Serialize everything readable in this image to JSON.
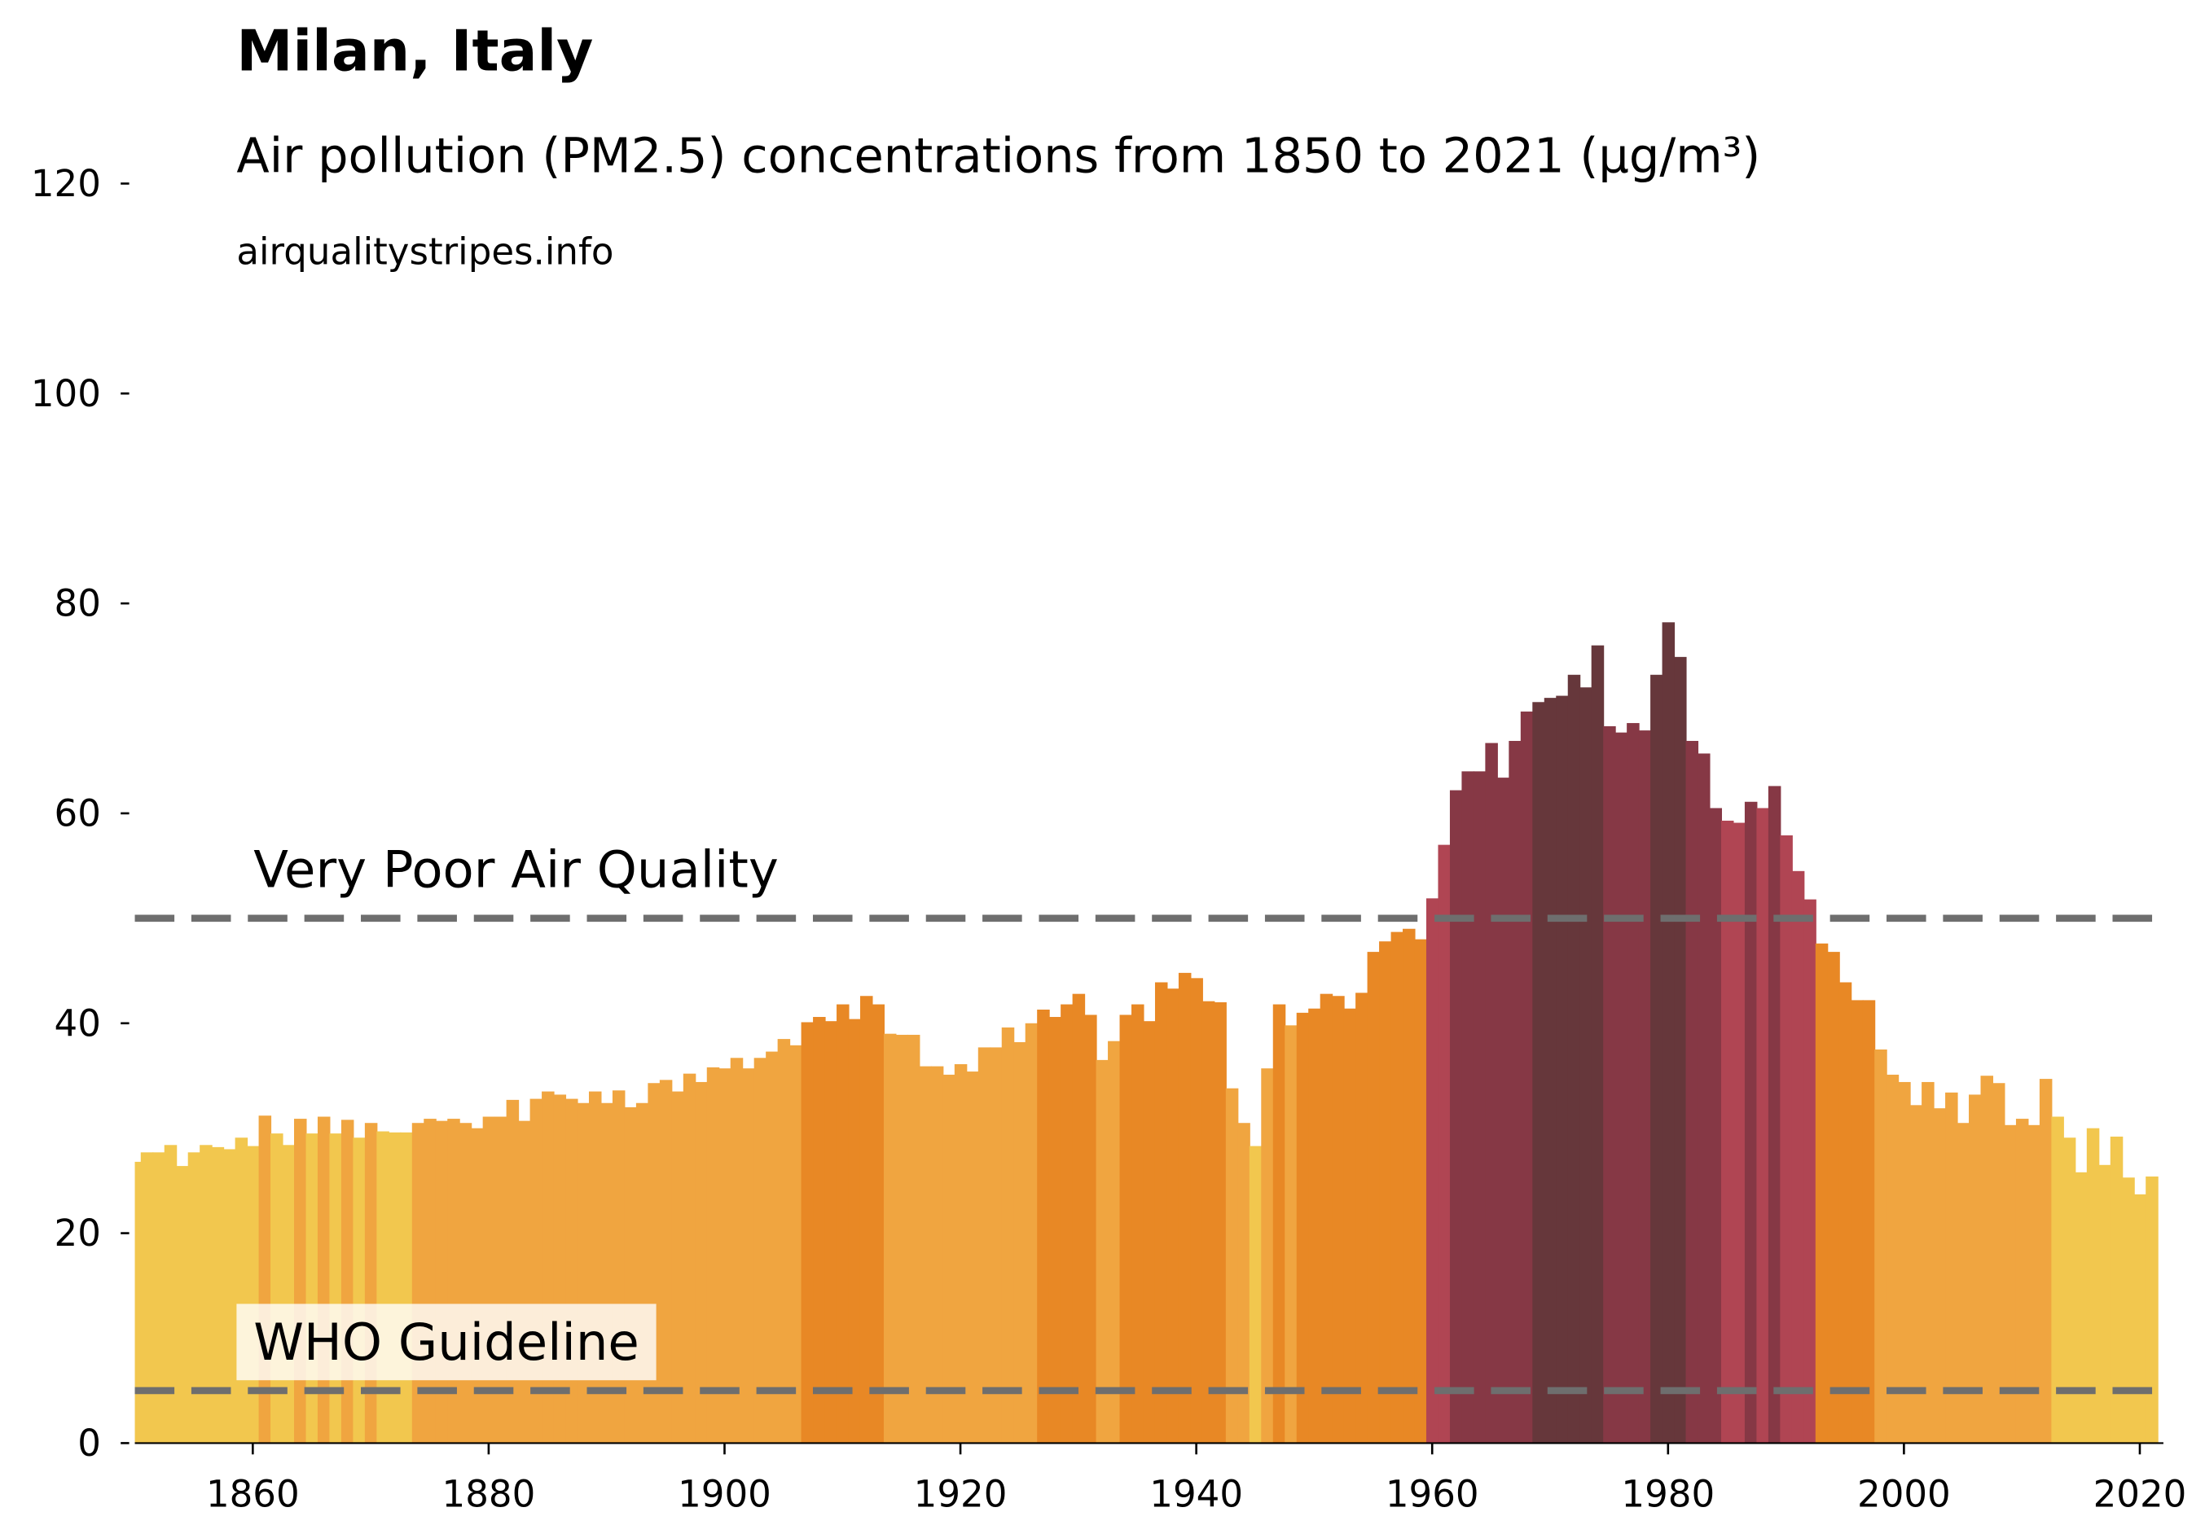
{
  "chart_data": {
    "type": "bar",
    "title": "Milan, Italy",
    "subtitle": "Air pollution (PM2.5) concentrations from 1850 to 2021 (µg/m³)",
    "source": "airqualitystripes.info",
    "x": [
      1850,
      1851,
      1852,
      1853,
      1854,
      1855,
      1856,
      1857,
      1858,
      1859,
      1860,
      1861,
      1862,
      1863,
      1864,
      1865,
      1866,
      1867,
      1868,
      1869,
      1870,
      1871,
      1872,
      1873,
      1874,
      1875,
      1876,
      1877,
      1878,
      1879,
      1880,
      1881,
      1882,
      1883,
      1884,
      1885,
      1886,
      1887,
      1888,
      1889,
      1890,
      1891,
      1892,
      1893,
      1894,
      1895,
      1896,
      1897,
      1898,
      1899,
      1900,
      1901,
      1902,
      1903,
      1904,
      1905,
      1906,
      1907,
      1908,
      1909,
      1910,
      1911,
      1912,
      1913,
      1914,
      1915,
      1916,
      1917,
      1918,
      1919,
      1920,
      1921,
      1922,
      1923,
      1924,
      1925,
      1926,
      1927,
      1928,
      1929,
      1930,
      1931,
      1932,
      1933,
      1934,
      1935,
      1936,
      1937,
      1938,
      1939,
      1940,
      1941,
      1942,
      1943,
      1944,
      1945,
      1946,
      1947,
      1948,
      1949,
      1950,
      1951,
      1952,
      1953,
      1954,
      1955,
      1956,
      1957,
      1958,
      1959,
      1960,
      1961,
      1962,
      1963,
      1964,
      1965,
      1966,
      1967,
      1968,
      1969,
      1970,
      1971,
      1972,
      1973,
      1974,
      1975,
      1976,
      1977,
      1978,
      1979,
      1980,
      1981,
      1982,
      1983,
      1984,
      1985,
      1986,
      1987,
      1988,
      1989,
      1990,
      1991,
      1992,
      1993,
      1994,
      1995,
      1996,
      1997,
      1998,
      1999,
      2000,
      2001,
      2002,
      2003,
      2004,
      2005,
      2006,
      2007,
      2008,
      2009,
      2010,
      2011,
      2012,
      2013,
      2014,
      2015,
      2016,
      2017,
      2018,
      2019,
      2020,
      2021
    ],
    "values": [
      26.8,
      27.7,
      27.7,
      28.4,
      26.4,
      27.7,
      28.4,
      28.2,
      28.0,
      29.1,
      28.3,
      31.2,
      29.5,
      28.4,
      30.9,
      29.5,
      31.1,
      29.5,
      30.8,
      29.1,
      30.5,
      29.7,
      29.6,
      29.6,
      30.5,
      30.9,
      30.7,
      30.9,
      30.5,
      30.0,
      31.1,
      31.1,
      32.7,
      30.7,
      32.8,
      33.5,
      33.2,
      32.8,
      32.4,
      33.5,
      32.4,
      33.6,
      32.0,
      32.4,
      34.3,
      34.6,
      33.5,
      35.2,
      34.4,
      35.8,
      35.7,
      36.7,
      35.7,
      36.7,
      37.3,
      38.5,
      37.9,
      40.1,
      40.6,
      40.2,
      41.8,
      40.4,
      42.6,
      41.8,
      39.0,
      38.9,
      38.9,
      35.9,
      35.9,
      35.1,
      36.1,
      35.4,
      37.7,
      37.7,
      39.6,
      38.2,
      40.0,
      41.3,
      40.6,
      41.8,
      42.8,
      40.8,
      36.5,
      38.3,
      40.8,
      41.8,
      40.2,
      43.9,
      43.3,
      44.8,
      44.3,
      42.1,
      42.0,
      33.8,
      30.5,
      28.3,
      35.7,
      41.8,
      39.8,
      41.0,
      41.4,
      42.8,
      42.6,
      41.4,
      42.9,
      46.8,
      47.8,
      48.7,
      49.0,
      48.0,
      51.9,
      57.0,
      62.2,
      64.0,
      64.0,
      66.7,
      63.4,
      66.9,
      69.7,
      70.6,
      71.0,
      71.2,
      73.2,
      72.0,
      76.0,
      68.3,
      67.7,
      68.6,
      67.9,
      73.2,
      78.2,
      74.9,
      66.9,
      65.7,
      60.5,
      59.3,
      59.1,
      61.1,
      60.5,
      62.6,
      57.9,
      54.5,
      51.8,
      47.6,
      46.8,
      43.9,
      42.2,
      42.2,
      37.5,
      35.1,
      34.4,
      32.2,
      34.4,
      31.9,
      33.4,
      30.5,
      33.2,
      35.0,
      34.3,
      30.3,
      30.9,
      30.3,
      34.7,
      31.1,
      29.1,
      25.8,
      30.0,
      26.5,
      29.2,
      25.3,
      23.7,
      25.4
    ],
    "colors": [
      "#f2c74e",
      "#f2c74e",
      "#f2c74e",
      "#f2c74e",
      "#f2c74e",
      "#f2c74e",
      "#f2c74e",
      "#f2c74e",
      "#f2c74e",
      "#f2c74e",
      "#f2c74e",
      "#f0a540",
      "#f2c74e",
      "#f2c74e",
      "#f0a540",
      "#f2c74e",
      "#f0a540",
      "#f2c74e",
      "#f0a540",
      "#f2c74e",
      "#f0a540",
      "#f2c74e",
      "#f2c74e",
      "#f2c74e",
      "#f0a540",
      "#f0a540",
      "#f0a540",
      "#f0a540",
      "#f0a540",
      "#f0a540",
      "#f0a540",
      "#f0a540",
      "#f0a540",
      "#f0a540",
      "#f0a540",
      "#f0a540",
      "#f0a540",
      "#f0a540",
      "#f0a540",
      "#f0a540",
      "#f0a540",
      "#f0a540",
      "#f0a540",
      "#f0a540",
      "#f0a540",
      "#f0a540",
      "#f0a540",
      "#f0a540",
      "#f0a540",
      "#f0a540",
      "#f0a540",
      "#f0a540",
      "#f0a540",
      "#f0a540",
      "#f0a540",
      "#f0a540",
      "#f0a540",
      "#e88825",
      "#e88825",
      "#e88825",
      "#e88825",
      "#e88825",
      "#e88825",
      "#e88825",
      "#f0a540",
      "#f0a540",
      "#f0a540",
      "#f0a540",
      "#f0a540",
      "#f0a540",
      "#f0a540",
      "#f0a540",
      "#f0a540",
      "#f0a540",
      "#f0a540",
      "#f0a540",
      "#f0a540",
      "#e88825",
      "#e88825",
      "#e88825",
      "#e88825",
      "#e88825",
      "#f0a540",
      "#f0a540",
      "#e88825",
      "#e88825",
      "#e88825",
      "#e88825",
      "#e88825",
      "#e88825",
      "#e88825",
      "#e88825",
      "#e88825",
      "#f0a540",
      "#f0a540",
      "#f2c74e",
      "#f0a540",
      "#e88825",
      "#f0a540",
      "#e88825",
      "#e88825",
      "#e88825",
      "#e88825",
      "#e88825",
      "#e88825",
      "#e88825",
      "#e88825",
      "#e88825",
      "#e88825",
      "#e88825",
      "#b04553",
      "#b04553",
      "#863845",
      "#863845",
      "#863845",
      "#863845",
      "#863845",
      "#863845",
      "#863845",
      "#66373b",
      "#66373b",
      "#66373b",
      "#66373b",
      "#66373b",
      "#66373b",
      "#863845",
      "#863845",
      "#863845",
      "#863845",
      "#66373b",
      "#66373b",
      "#66373b",
      "#863845",
      "#863845",
      "#863845",
      "#b04553",
      "#b04553",
      "#863845",
      "#b04553",
      "#863845",
      "#b04553",
      "#b04553",
      "#b04553",
      "#e88825",
      "#e88825",
      "#e88825",
      "#e88825",
      "#e88825",
      "#f0a540",
      "#f0a540",
      "#f0a540",
      "#f0a540",
      "#f0a540",
      "#f0a540",
      "#f0a540",
      "#f0a540",
      "#f0a540",
      "#f0a540",
      "#f0a540",
      "#f0a540",
      "#f0a540",
      "#f0a540",
      "#f0a540",
      "#f2c74e",
      "#f2c74e",
      "#f2c74e",
      "#f2c74e",
      "#f2c74e",
      "#f2c74e",
      "#f2c74e",
      "#f2c74e",
      "#f2c74e"
    ],
    "xlim": [
      1850,
      2022
    ],
    "ylim": [
      0,
      120
    ],
    "xticks": [
      1860,
      1880,
      1900,
      1920,
      1940,
      1960,
      1980,
      2000,
      2020
    ],
    "yticks": [
      0,
      20,
      40,
      60,
      80,
      100,
      120
    ],
    "annotations": [
      {
        "text": "Very Poor Air Quality",
        "y": 50
      },
      {
        "text": "WHO Guideline",
        "y": 5
      }
    ],
    "line_color": "#6e6e6e"
  }
}
